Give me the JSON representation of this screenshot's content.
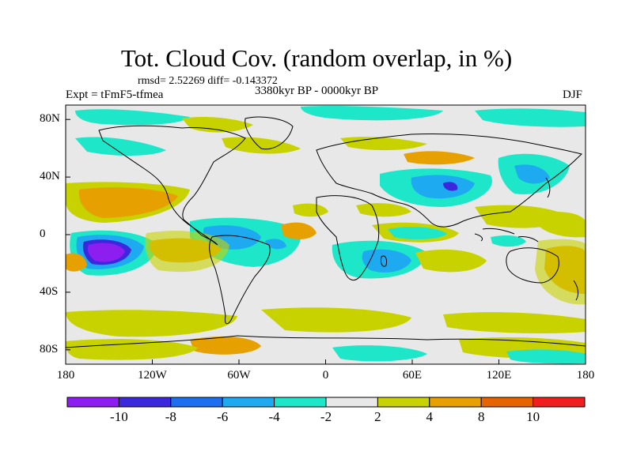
{
  "header": {
    "title": "Tot. Cloud Cov. (random overlap, in %)",
    "stats": "rmsd= 2.52269 diff= -0.143372",
    "experiment": "Expt = tFmF5-tfmea",
    "period": "3380kyr BP - 0000kyr BP",
    "season": "DJF"
  },
  "map": {
    "lat_labels": [
      {
        "lat": 80,
        "label": "80N"
      },
      {
        "lat": 40,
        "label": "40N"
      },
      {
        "lat": 0,
        "label": "0"
      },
      {
        "lat": -40,
        "label": "40S"
      },
      {
        "lat": -80,
        "label": "80S"
      }
    ],
    "lon_labels": [
      {
        "lon": -180,
        "label": "180"
      },
      {
        "lon": -120,
        "label": "120W"
      },
      {
        "lon": -60,
        "label": "60W"
      },
      {
        "lon": 0,
        "label": "0"
      },
      {
        "lon": 60,
        "label": "60E"
      },
      {
        "lon": 120,
        "label": "120E"
      },
      {
        "lon": 180,
        "label": "180"
      }
    ],
    "background_color": "#e8e8e8"
  },
  "colorbar": {
    "colors": [
      "#8c1ef0",
      "#3c28dc",
      "#1e6ef0",
      "#1eaaf0",
      "#1ee6c8",
      "#e8e8e8",
      "#c8d200",
      "#e6a000",
      "#e66400",
      "#f01e1e"
    ],
    "labels": [
      "-10",
      "-8",
      "-6",
      "-4",
      "-2",
      "2",
      "4",
      "8",
      "10"
    ]
  }
}
